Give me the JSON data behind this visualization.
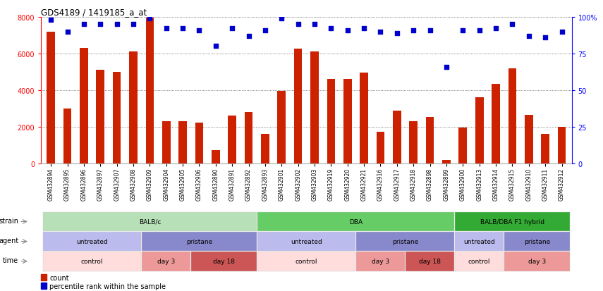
{
  "title": "GDS4189 / 1419185_a_at",
  "samples": [
    "GSM432894",
    "GSM432895",
    "GSM432896",
    "GSM432897",
    "GSM432907",
    "GSM432908",
    "GSM432909",
    "GSM432904",
    "GSM432905",
    "GSM432906",
    "GSM432890",
    "GSM432891",
    "GSM432892",
    "GSM432893",
    "GSM432901",
    "GSM432902",
    "GSM432903",
    "GSM432919",
    "GSM432920",
    "GSM432921",
    "GSM432916",
    "GSM432917",
    "GSM432918",
    "GSM432898",
    "GSM432899",
    "GSM432900",
    "GSM432913",
    "GSM432914",
    "GSM432915",
    "GSM432910",
    "GSM432911",
    "GSM432912"
  ],
  "counts": [
    7200,
    3000,
    6300,
    5100,
    5000,
    6100,
    7950,
    2300,
    2300,
    2250,
    750,
    2600,
    2800,
    1600,
    3950,
    6250,
    6100,
    4600,
    4600,
    4950,
    1750,
    2900,
    2300,
    2550,
    200,
    1950,
    3600,
    4350,
    5200,
    2650,
    1600,
    2000
  ],
  "percentiles": [
    98,
    90,
    95,
    95,
    95,
    95,
    99,
    92,
    92,
    91,
    80,
    92,
    87,
    91,
    99,
    95,
    95,
    92,
    91,
    92,
    90,
    89,
    91,
    91,
    66,
    91,
    91,
    92,
    95,
    87,
    86,
    90
  ],
  "bar_color": "#cc2200",
  "dot_color": "#0000cc",
  "ylim_left": [
    0,
    8000
  ],
  "ylim_right": [
    0,
    100
  ],
  "yticks_left": [
    0,
    2000,
    4000,
    6000,
    8000
  ],
  "yticks_right": [
    0,
    25,
    50,
    75,
    100
  ],
  "strain_groups": [
    {
      "label": "BALB/c",
      "start": 0,
      "end": 13,
      "color": "#b8e0b8"
    },
    {
      "label": "DBA",
      "start": 13,
      "end": 25,
      "color": "#66cc66"
    },
    {
      "label": "BALB/DBA F1 hybrid",
      "start": 25,
      "end": 32,
      "color": "#33aa33"
    }
  ],
  "agent_groups": [
    {
      "label": "untreated",
      "start": 0,
      "end": 6,
      "color": "#bbbbee"
    },
    {
      "label": "pristane",
      "start": 6,
      "end": 13,
      "color": "#8888cc"
    },
    {
      "label": "untreated",
      "start": 13,
      "end": 19,
      "color": "#bbbbee"
    },
    {
      "label": "pristane",
      "start": 19,
      "end": 25,
      "color": "#8888cc"
    },
    {
      "label": "untreated",
      "start": 25,
      "end": 28,
      "color": "#bbbbee"
    },
    {
      "label": "pristane",
      "start": 28,
      "end": 32,
      "color": "#8888cc"
    }
  ],
  "time_groups": [
    {
      "label": "control",
      "start": 0,
      "end": 6,
      "color": "#ffdddd"
    },
    {
      "label": "day 3",
      "start": 6,
      "end": 9,
      "color": "#ee9999"
    },
    {
      "label": "day 18",
      "start": 9,
      "end": 13,
      "color": "#cc5555"
    },
    {
      "label": "control",
      "start": 13,
      "end": 19,
      "color": "#ffdddd"
    },
    {
      "label": "day 3",
      "start": 19,
      "end": 22,
      "color": "#ee9999"
    },
    {
      "label": "day 18",
      "start": 22,
      "end": 25,
      "color": "#cc5555"
    },
    {
      "label": "control",
      "start": 25,
      "end": 28,
      "color": "#ffdddd"
    },
    {
      "label": "day 3",
      "start": 28,
      "end": 32,
      "color": "#ee9999"
    }
  ],
  "background_color": "#ffffff",
  "grid_color": "#555555"
}
